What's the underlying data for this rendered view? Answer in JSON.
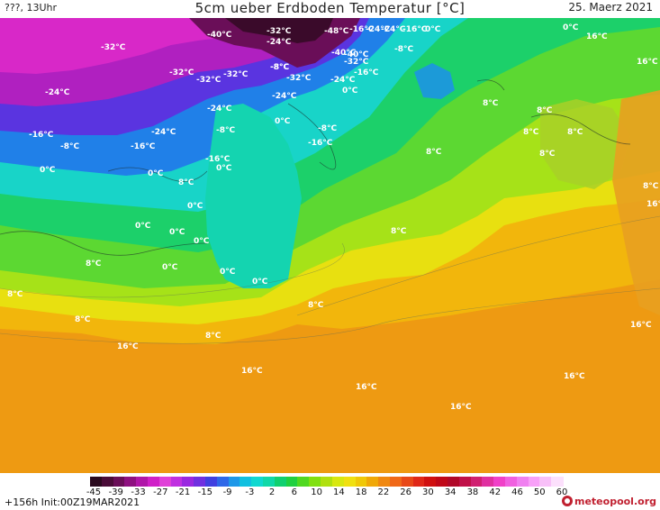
{
  "header": {
    "left": "???, 13Uhr",
    "title": "5cm ueber Erdboden Temperatur [°C]",
    "date": "25. Maerz 2021"
  },
  "map": {
    "unit": "°C",
    "labels": [
      {
        "t": "-40°C"
      },
      {
        "t": "-32°C"
      },
      {
        "t": "-16°C"
      },
      {
        "t": "-24°C"
      },
      {
        "t": "-48°C"
      },
      {
        "t": "-24°C"
      },
      {
        "t": "-16°C"
      },
      {
        "t": "0°C"
      },
      {
        "t": "-32°C"
      },
      {
        "t": "-24°C"
      },
      {
        "t": "-8°C"
      },
      {
        "t": "-40°C"
      },
      {
        "t": "-40°C"
      },
      {
        "t": "-8°C"
      },
      {
        "t": "-32°C"
      },
      {
        "t": "-32°C"
      },
      {
        "t": "-32°C"
      },
      {
        "t": "-32°C"
      },
      {
        "t": "-8°C"
      },
      {
        "t": "-32°C"
      },
      {
        "t": "-24°C"
      },
      {
        "t": "-16°C"
      },
      {
        "t": "-24°C"
      },
      {
        "t": "-24°C"
      },
      {
        "t": "0°C"
      },
      {
        "t": "0°C"
      },
      {
        "t": "-24°C"
      },
      {
        "t": "0°C"
      },
      {
        "t": "-8°C"
      },
      {
        "t": "-16°C"
      },
      {
        "t": "-24°C"
      },
      {
        "t": "-8°C"
      },
      {
        "t": "-16°C"
      },
      {
        "t": "-8°C"
      },
      {
        "t": "-16°C"
      },
      {
        "t": "-16°C"
      },
      {
        "t": "0°C"
      },
      {
        "t": "0°C"
      },
      {
        "t": "8°C"
      },
      {
        "t": "0°C"
      },
      {
        "t": "0°C"
      },
      {
        "t": "0°C"
      },
      {
        "t": "0°C"
      },
      {
        "t": "0°C"
      },
      {
        "t": "8°C"
      },
      {
        "t": "8°C"
      },
      {
        "t": "0°C"
      },
      {
        "t": "0°C"
      },
      {
        "t": "0°C"
      },
      {
        "t": "8°C"
      },
      {
        "t": "8°C"
      },
      {
        "t": "8°C"
      },
      {
        "t": "8°C"
      },
      {
        "t": "8°C"
      },
      {
        "t": "8°C"
      },
      {
        "t": "8°C"
      },
      {
        "t": "8°C"
      },
      {
        "t": "8°C"
      },
      {
        "t": "8°C"
      },
      {
        "t": "8°C"
      },
      {
        "t": "16°C"
      },
      {
        "t": "16°C"
      },
      {
        "t": "16°C"
      },
      {
        "t": "16°C"
      },
      {
        "t": "16°C"
      },
      {
        "t": "16°C"
      },
      {
        "t": "16°C"
      },
      {
        "t": "16°C"
      },
      {
        "t": "16°C"
      }
    ]
  },
  "legend": {
    "ticks": [
      "-45",
      "-39",
      "-33",
      "-27",
      "-21",
      "-15",
      "-9",
      "-3",
      "2",
      "6",
      "10",
      "14",
      "18",
      "22",
      "26",
      "30",
      "34",
      "38",
      "42",
      "46",
      "50",
      "60"
    ],
    "colors": [
      "#2a0a1e",
      "#4a0c38",
      "#6a0e58",
      "#8e1080",
      "#b016a8",
      "#d020c8",
      "#e040d8",
      "#c030e0",
      "#9a28e0",
      "#7030e0",
      "#4040e0",
      "#2e68e8",
      "#1e98e8",
      "#10c0e0",
      "#10d8d0",
      "#10d8a8",
      "#10d070",
      "#20d040",
      "#50d820",
      "#80e010",
      "#b0e010",
      "#d8e810",
      "#f0e010",
      "#f0c808",
      "#f0a808",
      "#f08810",
      "#f06818",
      "#e84818",
      "#e02818",
      "#d01010",
      "#c00818",
      "#b00828",
      "#c01048",
      "#d02070",
      "#e030a0",
      "#f040c8",
      "#f060e0",
      "#f080f0",
      "#f8a0f8",
      "#f8c0f8",
      "#fce0fc"
    ]
  },
  "footer": {
    "left": "+156h  Init:00Z19MAR2021",
    "logo": "meteopool.org"
  }
}
